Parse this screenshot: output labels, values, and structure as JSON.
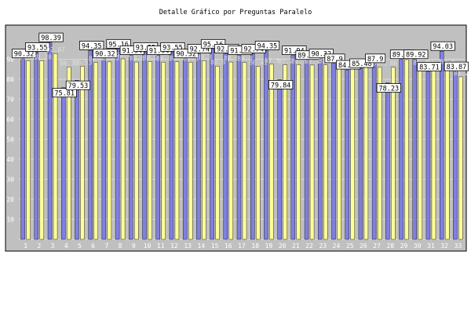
{
  "chart_data": {
    "type": "bar",
    "title": "Detalle Gráfico por Preguntas Paralelo",
    "categories": [
      "1",
      "2",
      "3",
      "4",
      "5",
      "6",
      "7",
      "8",
      "9",
      "10",
      "11",
      "12",
      "13",
      "14",
      "15",
      "16",
      "17",
      "18",
      "19",
      "20",
      "21",
      "22",
      "23",
      "24",
      "25",
      "26",
      "27",
      "28",
      "29",
      "30",
      "31",
      "32",
      "33"
    ],
    "yticks": [
      10,
      20,
      30,
      40,
      50,
      60,
      70,
      80,
      90
    ],
    "ylim": [
      0,
      100
    ],
    "grid": true,
    "series": [
      {
        "values": [
          90.32,
          93.55,
          98.39,
          75.81,
          79.53,
          94.35,
          90.32,
          95.16,
          91.94,
          93.55,
          91.94,
          93.55,
          90.32,
          92.74,
          95.16,
          92.74,
          91.94,
          92.74,
          94.35,
          79.84,
          91.94,
          89.52,
          90.32,
          87.9,
          84.68,
          85.48,
          87.9,
          78.23,
          89.92,
          89.92,
          83.71,
          94.03,
          83.87
        ],
        "color": "#8080e0"
      },
      {
        "values": [
          89.22,
          89.28,
          92.87,
          86.13,
          86.53,
          88.4,
          88.68,
          90.2,
          88.6,
          88.9,
          88.5,
          88.7,
          88.5,
          89.3,
          86.6,
          88.6,
          88.4,
          86.42,
          87.5,
          87.2,
          87.3,
          87.1,
          87.2,
          87.0,
          86.8,
          86.6,
          86.1,
          86.0,
          89.8,
          86.4,
          87.1,
          86.8,
          81.2
        ],
        "color": "#ffff99"
      }
    ]
  }
}
